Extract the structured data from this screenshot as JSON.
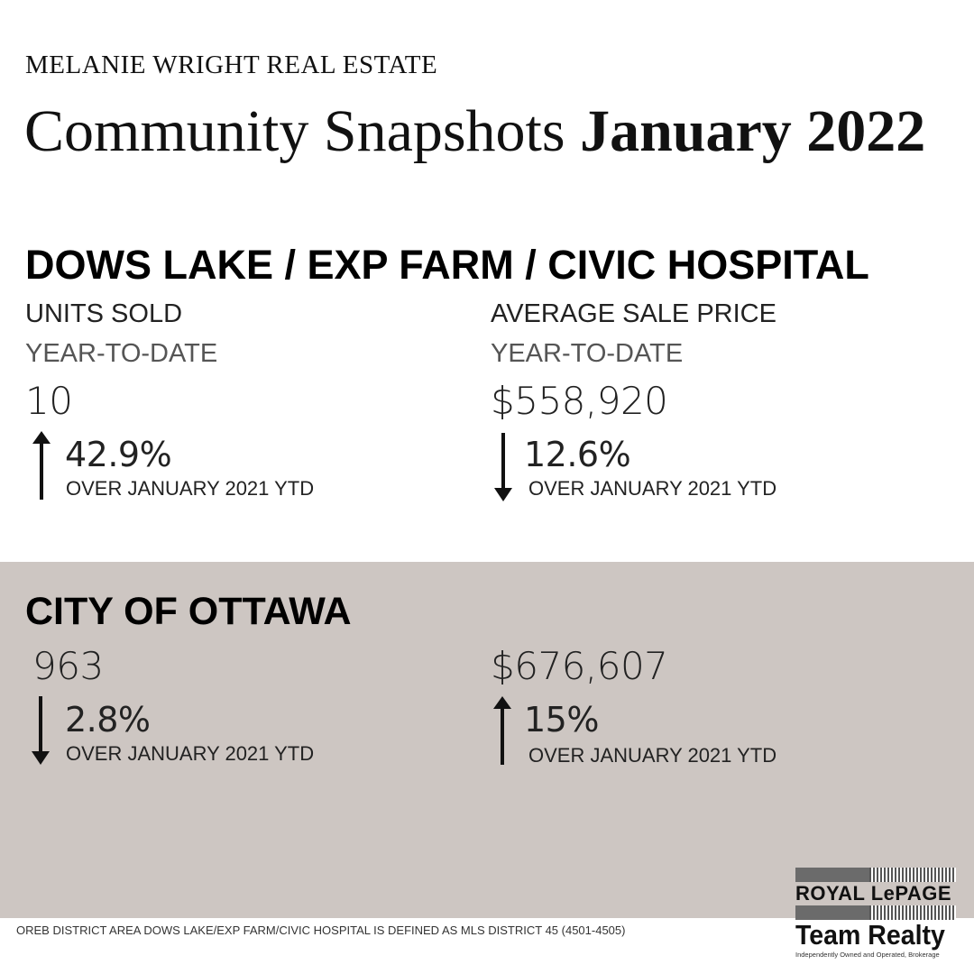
{
  "header": {
    "brand": "MELANIE WRIGHT REAL ESTATE",
    "title_prefix": "Community Snapshots",
    "title_date": "January 2022"
  },
  "neighbourhood": {
    "name": "DOWS LAKE / EXP FARM / CIVIC HOSPITAL",
    "units": {
      "label": "UNITS SOLD",
      "period": "YEAR-TO-DATE",
      "value": "10",
      "change": "42.9%",
      "direction": "up",
      "comparison": "OVER JANUARY 2021 YTD"
    },
    "price": {
      "label": "AVERAGE SALE PRICE",
      "period": "YEAR-TO-DATE",
      "value": "$558,920",
      "change": "12.6%",
      "direction": "down",
      "comparison": "OVER JANUARY 2021 YTD"
    }
  },
  "city": {
    "name": "CITY OF OTTAWA",
    "units": {
      "value": "963",
      "change": "2.8%",
      "direction": "down",
      "comparison": "OVER JANUARY 2021 YTD"
    },
    "price": {
      "value": "$676,607",
      "change": "15%",
      "direction": "up",
      "comparison": "OVER JANUARY 2021 YTD"
    }
  },
  "footer": {
    "note": "OREB DISTRICT AREA DOWS LAKE/EXP FARM/CIVIC HOSPITAL IS DEFINED AS MLS DISTRICT 45 (4501-4505)"
  },
  "logo": {
    "line1": "ROYAL LePAGE",
    "line2": "Team Realty",
    "tagline": "Independently Owned and Operated, Brokerage"
  },
  "colors": {
    "band": "#cdc6c2",
    "text": "#111111",
    "background": "#ffffff"
  }
}
